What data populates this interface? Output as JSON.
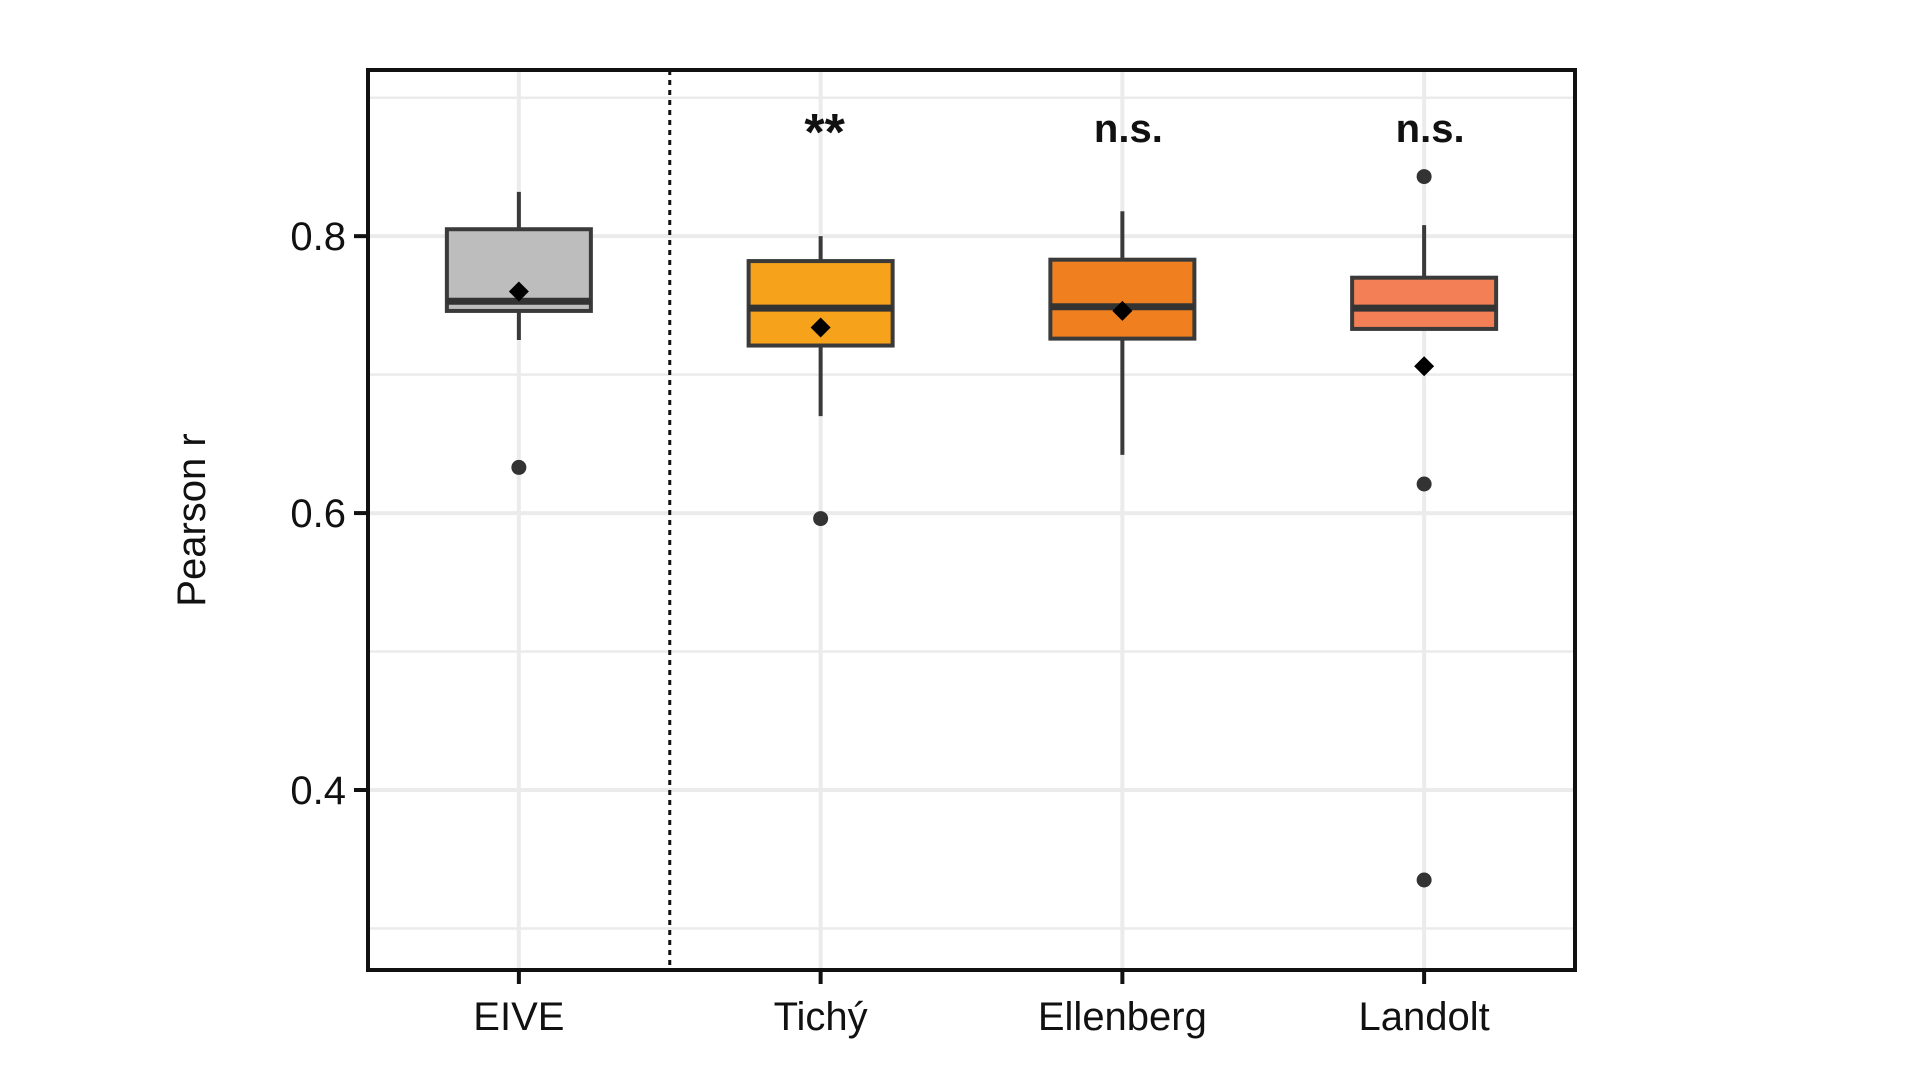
{
  "chart_data": {
    "type": "box",
    "title": "",
    "xlabel": "",
    "ylabel": "Pearson r",
    "ylim": [
      0.27,
      0.92
    ],
    "yticks": [
      0.4,
      0.6,
      0.8
    ],
    "ytick_labels": [
      "0.4",
      "0.6",
      "0.8"
    ],
    "grid": true,
    "legend": "none",
    "separator_after_category": "EIVE",
    "categories": [
      "EIVE",
      "Tichý",
      "Ellenberg",
      "Landolt"
    ],
    "boxes": [
      {
        "category": "EIVE",
        "whisker_low": 0.725,
        "q1": 0.746,
        "median": 0.753,
        "q3": 0.805,
        "whisker_high": 0.832,
        "mean": 0.76,
        "outliers": [
          0.633
        ],
        "significance": "",
        "color": "#bdbdbd"
      },
      {
        "category": "Tichý",
        "whisker_low": 0.67,
        "q1": 0.721,
        "median": 0.748,
        "q3": 0.782,
        "whisker_high": 0.8,
        "mean": 0.734,
        "outliers": [
          0.596
        ],
        "significance": "**",
        "color": "#f7a21b"
      },
      {
        "category": "Ellenberg",
        "whisker_low": 0.642,
        "q1": 0.726,
        "median": 0.749,
        "q3": 0.783,
        "whisker_high": 0.818,
        "mean": 0.746,
        "outliers": [],
        "significance": "n.s.",
        "color": "#f0801f"
      },
      {
        "category": "Landolt",
        "whisker_low": 0.733,
        "q1": 0.733,
        "median": 0.748,
        "q3": 0.77,
        "whisker_high": 0.808,
        "mean": 0.706,
        "outliers": [
          0.843,
          0.621,
          0.335
        ],
        "significance": "n.s.",
        "color": "#f27f55"
      }
    ]
  }
}
